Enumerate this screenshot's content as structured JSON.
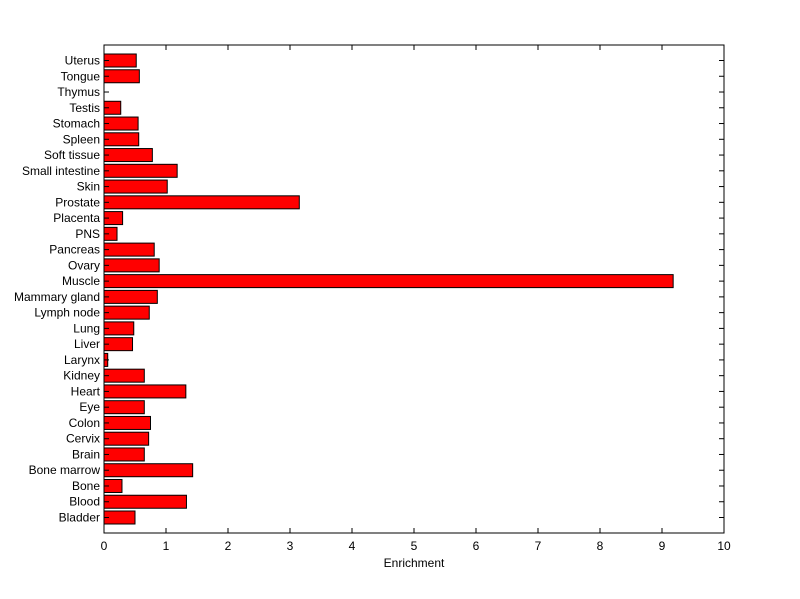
{
  "chart_data": {
    "type": "bar",
    "orientation": "horizontal",
    "categories": [
      "Uterus",
      "Tongue",
      "Thymus",
      "Testis",
      "Stomach",
      "Spleen",
      "Soft tissue",
      "Small intestine",
      "Skin",
      "Prostate",
      "Placenta",
      "PNS",
      "Pancreas",
      "Ovary",
      "Muscle",
      "Mammary gland",
      "Lymph node",
      "Lung",
      "Liver",
      "Larynx",
      "Kidney",
      "Heart",
      "Eye",
      "Colon",
      "Cervix",
      "Brain",
      "Bone marrow",
      "Bone",
      "Blood",
      "Bladder"
    ],
    "values": [
      0.52,
      0.57,
      0.0,
      0.27,
      0.55,
      0.56,
      0.78,
      1.18,
      1.02,
      3.15,
      0.3,
      0.21,
      0.81,
      0.89,
      9.18,
      0.86,
      0.73,
      0.48,
      0.46,
      0.06,
      0.65,
      1.32,
      0.65,
      0.75,
      0.72,
      0.65,
      1.43,
      0.29,
      1.33,
      0.5
    ],
    "xlabel": "Enrichment",
    "ylabel": "",
    "title": "",
    "xlim": [
      0,
      10
    ],
    "xticks": [
      0,
      1,
      2,
      3,
      4,
      5,
      6,
      7,
      8,
      9,
      10
    ],
    "grid": false,
    "bar_color": "#ff0000",
    "bar_edge_color": "#000000"
  }
}
